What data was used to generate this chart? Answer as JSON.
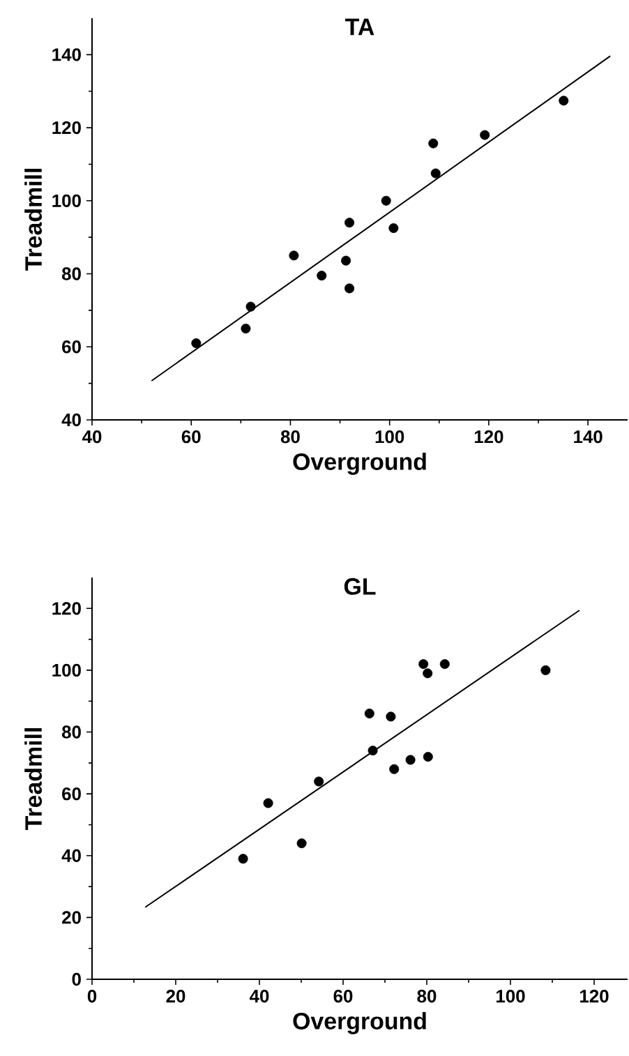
{
  "chart_data": [
    {
      "type": "scatter",
      "marker": "circle",
      "title": "TA",
      "xlabel": "Overground",
      "ylabel": "Treadmill",
      "xlim": [
        40,
        148
      ],
      "ylim": [
        40,
        150
      ],
      "xticks": [
        40,
        60,
        80,
        100,
        120,
        140
      ],
      "yticks": [
        40,
        60,
        80,
        100,
        120,
        140
      ],
      "series": [
        {
          "type": "scatter",
          "color": "#000000",
          "x": [
            61,
            71,
            72,
            80.7,
            86.3,
            91.2,
            91.9,
            91.9,
            99.3,
            100.8,
            108.8,
            109.3,
            119.2,
            135.1
          ],
          "values": [
            61,
            65,
            71,
            85,
            79.5,
            83.6,
            94,
            76,
            100,
            92.5,
            115.7,
            107.5,
            118,
            127.4
          ]
        },
        {
          "type": "line",
          "color": "#000000",
          "marker": "none",
          "x": [
            52,
            144.5
          ],
          "values": [
            50.7,
            139.6
          ]
        }
      ]
    },
    {
      "type": "scatter",
      "marker": "circle",
      "title": "GL",
      "xlabel": "Overground",
      "ylabel": "Treadmill",
      "xlim": [
        0,
        128
      ],
      "ylim": [
        0,
        130
      ],
      "xticks": [
        0,
        20,
        40,
        60,
        80,
        100,
        120
      ],
      "yticks": [
        0,
        20,
        40,
        60,
        80,
        100,
        120
      ],
      "series": [
        {
          "type": "scatter",
          "color": "#000000",
          "x": [
            36.1,
            42.1,
            50.1,
            54.2,
            66.3,
            67.1,
            71.4,
            72.2,
            76.1,
            79.2,
            80.2,
            80.3,
            84.3,
            108.4
          ],
          "values": [
            39,
            57,
            44,
            64,
            86,
            74,
            85,
            68,
            71,
            102,
            99,
            72,
            102,
            100
          ]
        },
        {
          "type": "line",
          "color": "#000000",
          "marker": "none",
          "x": [
            12.7,
            116.5
          ],
          "values": [
            23.3,
            119.4
          ]
        }
      ]
    }
  ]
}
